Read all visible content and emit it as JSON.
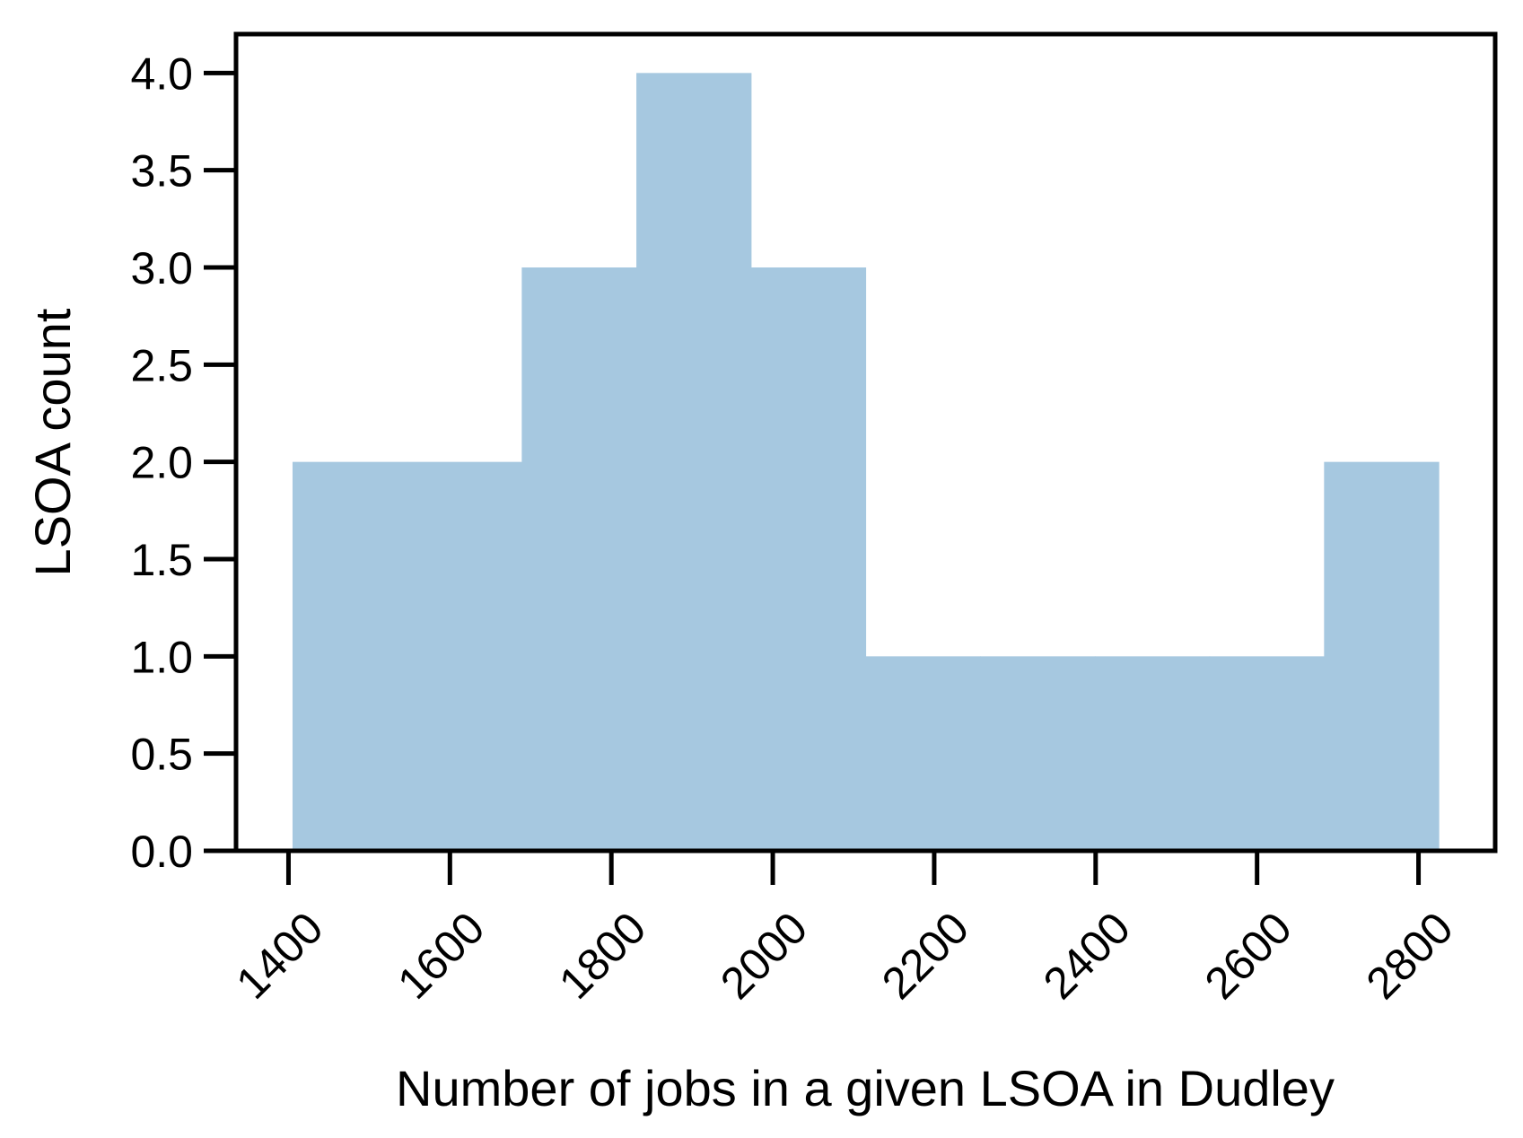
{
  "chart_data": {
    "type": "bar",
    "title": "",
    "xlabel": "Number of jobs in a given LSOA in Dudley",
    "ylabel": "LSOA count",
    "bin_edges": [
      1405,
      1547,
      1689,
      1831,
      1973,
      2115,
      2257,
      2399,
      2541,
      2683,
      2825
    ],
    "values": [
      2,
      2,
      3,
      4,
      3,
      1,
      1,
      1,
      1,
      2
    ],
    "xlim": [
      1335,
      2895
    ],
    "ylim": [
      0,
      4.2
    ],
    "xticks": [
      1400,
      1600,
      1800,
      2000,
      2200,
      2400,
      2600,
      2800
    ],
    "xtick_labels": [
      "1400",
      "1600",
      "1800",
      "2000",
      "2200",
      "2400",
      "2600",
      "2800"
    ],
    "yticks": [
      0,
      0.5,
      1,
      1.5,
      2,
      2.5,
      3,
      3.5,
      4
    ],
    "ytick_labels": [
      "0.0",
      "0.5",
      "1.0",
      "1.5",
      "2.0",
      "2.5",
      "3.0",
      "3.5",
      "4.0"
    ],
    "grid": false,
    "bar_color": "#a6c8e0",
    "axis_color": "#000000"
  }
}
